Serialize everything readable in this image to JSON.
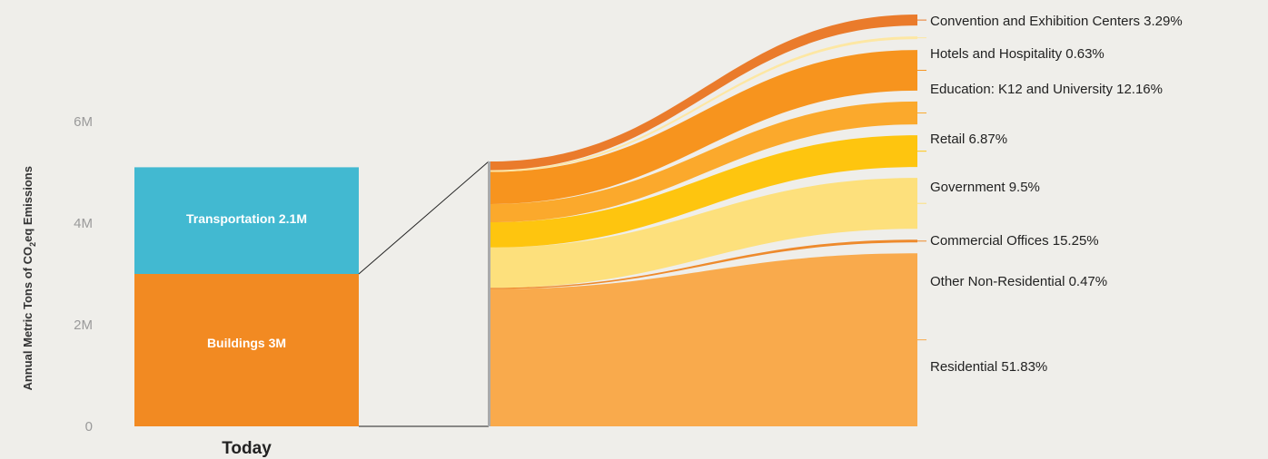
{
  "chart_data": {
    "type": "bar",
    "ylabel_prefix": "Annual Metric Tons of CO",
    "ylabel_sub": "2",
    "ylabel_suffix": "eq Emissions",
    "yticks": [
      "0",
      "2M",
      "4M",
      "6M"
    ],
    "ylim": [
      0,
      7
    ],
    "x_category": "Today",
    "stacked_bar": [
      {
        "name": "Buildings",
        "label": "Buildings 3M",
        "value": 3.0,
        "color": "#f28a22"
      },
      {
        "name": "Transportation",
        "label": "Transportation 2.1M",
        "value": 2.1,
        "color": "#42b9d1"
      }
    ],
    "breakdown_of": "Buildings",
    "breakdown": [
      {
        "label": "Residential 51.83%",
        "name": "Residential",
        "percent": 51.83,
        "color": "#f9aa4c"
      },
      {
        "label": "Other Non-Residential 0.47%",
        "name": "Other Non-Residential",
        "percent": 0.47,
        "color": "#ee8a2c"
      },
      {
        "label": "Commercial Offices 15.25%",
        "name": "Commercial Offices",
        "percent": 15.25,
        "color": "#fde07c"
      },
      {
        "label": "Government 9.5%",
        "name": "Government",
        "percent": 9.5,
        "color": "#fec50f"
      },
      {
        "label": "Retail 6.87%",
        "name": "Retail",
        "percent": 6.87,
        "color": "#fba92c"
      },
      {
        "label": "Education: K12 and University 12.16%",
        "name": "Education: K12 and University",
        "percent": 12.16,
        "color": "#f7941e"
      },
      {
        "label": "Hotels and Hospitality 0.63%",
        "name": "Hotels and Hospitality",
        "percent": 0.63,
        "color": "#fde7a3"
      },
      {
        "label": "Convention and Exhibition Centers 3.29%",
        "name": "Convention and Exhibition Centers",
        "percent": 3.29,
        "color": "#ea7b2b"
      }
    ]
  }
}
